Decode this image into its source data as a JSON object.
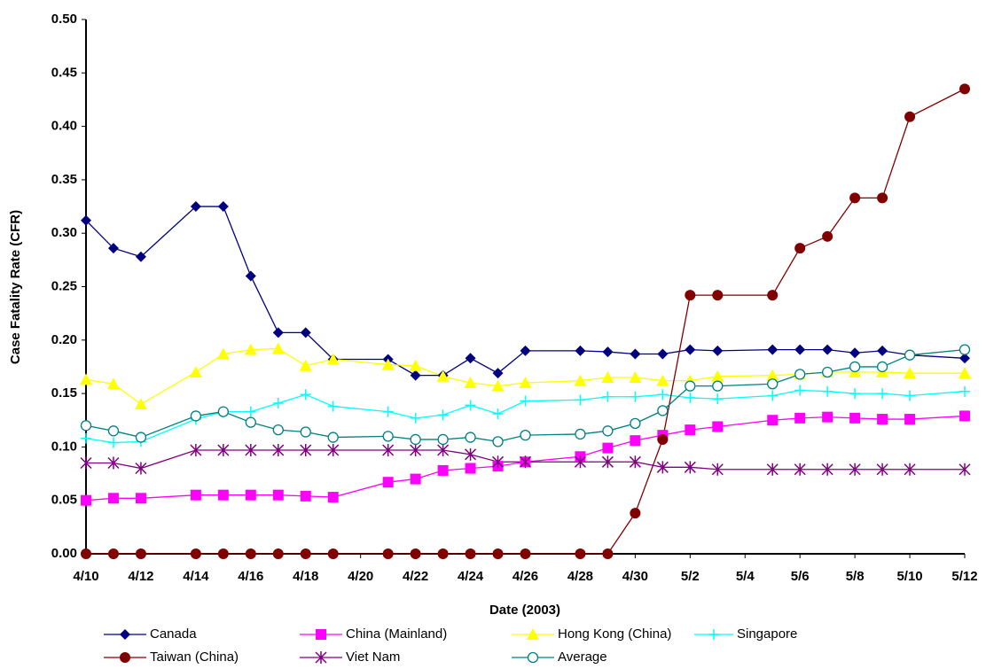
{
  "chart_data": {
    "type": "line",
    "x_label": "Date (2003)",
    "y_label": "Case Fatality Rate (CFR)",
    "x": [
      "4/10",
      "4/11",
      "4/12",
      "4/14",
      "4/15",
      "4/16",
      "4/17",
      "4/18",
      "4/19",
      "4/21",
      "4/22",
      "4/23",
      "4/24",
      "4/25",
      "4/26",
      "4/28",
      "4/29",
      "4/30",
      "5/1",
      "5/2",
      "5/3",
      "5/5",
      "5/6",
      "5/7",
      "5/8",
      "5/9",
      "5/10",
      "5/12"
    ],
    "xlim": [
      "4/10",
      "5/12"
    ],
    "xticks": [
      "4/10",
      "4/12",
      "4/14",
      "4/16",
      "4/18",
      "4/20",
      "4/22",
      "4/24",
      "4/26",
      "4/28",
      "4/30",
      "5/2",
      "5/4",
      "5/6",
      "5/8",
      "5/10",
      "5/12"
    ],
    "ylim": [
      0,
      0.5
    ],
    "yticks": [
      {
        "value": 0,
        "label": "0.00"
      },
      {
        "value": 0.05,
        "label": "0.05"
      },
      {
        "value": 0.1,
        "label": "0.10"
      },
      {
        "value": 0.15,
        "label": "0.15"
      },
      {
        "value": 0.2,
        "label": "0.20"
      },
      {
        "value": 0.25,
        "label": "0.25"
      },
      {
        "value": 0.3,
        "label": "0.30"
      },
      {
        "value": 0.35,
        "label": "0.35"
      },
      {
        "value": 0.4,
        "label": "0.40"
      },
      {
        "value": 0.45,
        "label": "0.45"
      },
      {
        "value": 0.5,
        "label": "0.50"
      }
    ],
    "grid": false,
    "legend": "bottom",
    "series": [
      {
        "name": "Canada",
        "color": "#000080",
        "marker": "diamond",
        "values": [
          0.312,
          0.286,
          0.278,
          0.325,
          0.325,
          0.26,
          0.207,
          0.207,
          0.182,
          0.182,
          0.167,
          0.167,
          0.183,
          0.169,
          0.19,
          0.19,
          0.189,
          0.187,
          0.187,
          0.191,
          0.19,
          0.191,
          0.191,
          0.191,
          0.188,
          0.19,
          0.186,
          0.183
        ]
      },
      {
        "name": "China (Mainland)",
        "color": "#ff00ff",
        "marker": "square",
        "values": [
          0.05,
          0.052,
          0.052,
          0.055,
          0.055,
          0.055,
          0.055,
          0.054,
          0.053,
          0.067,
          0.07,
          0.078,
          0.08,
          0.082,
          0.086,
          0.091,
          0.099,
          0.106,
          0.111,
          0.116,
          0.119,
          0.125,
          0.127,
          0.128,
          0.127,
          0.126,
          0.126,
          0.129
        ]
      },
      {
        "name": "Hong Kong (China)",
        "color": "#ffff00",
        "marker": "triangle",
        "values": [
          0.163,
          0.159,
          0.14,
          0.17,
          0.187,
          0.191,
          0.192,
          0.176,
          0.182,
          0.177,
          0.176,
          0.166,
          0.16,
          0.157,
          0.16,
          0.162,
          0.165,
          0.165,
          0.162,
          0.162,
          0.166,
          0.167,
          0.168,
          0.17,
          0.17,
          0.17,
          0.169,
          0.169
        ]
      },
      {
        "name": "Singapore",
        "color": "#00ffff",
        "marker": "plus",
        "values": [
          0.108,
          0.104,
          0.105,
          0.126,
          0.133,
          0.133,
          0.141,
          0.149,
          0.138,
          0.133,
          0.127,
          0.13,
          0.139,
          0.131,
          0.143,
          0.144,
          0.147,
          0.147,
          0.149,
          0.146,
          0.145,
          0.148,
          0.153,
          0.152,
          0.15,
          0.15,
          0.148,
          0.152
        ]
      },
      {
        "name": "Taiwan (China)",
        "color": "#800000",
        "marker": "circle",
        "values": [
          0,
          0,
          0,
          0,
          0,
          0,
          0,
          0,
          0,
          0,
          0,
          0,
          0,
          0,
          0,
          0,
          0,
          0.038,
          0.107,
          0.242,
          0.242,
          0.242,
          0.286,
          0.297,
          0.333,
          0.333,
          0.409,
          0.435
        ]
      },
      {
        "name": "Viet Nam",
        "color": "#800080",
        "marker": "star",
        "values": [
          0.085,
          0.085,
          0.08,
          0.097,
          0.097,
          0.097,
          0.097,
          0.097,
          0.097,
          0.097,
          0.097,
          0.097,
          0.093,
          0.086,
          0.086,
          0.086,
          0.086,
          0.086,
          0.081,
          0.081,
          0.079,
          0.079,
          0.079,
          0.079,
          0.079,
          0.079,
          0.079,
          0.079
        ]
      },
      {
        "name": "Average",
        "color": "#008080",
        "marker": "open-circle",
        "values": [
          0.12,
          0.115,
          0.109,
          0.129,
          0.133,
          0.123,
          0.116,
          0.114,
          0.109,
          0.11,
          0.107,
          0.107,
          0.109,
          0.105,
          0.111,
          0.112,
          0.115,
          0.122,
          0.134,
          0.157,
          0.157,
          0.159,
          0.168,
          0.17,
          0.175,
          0.175,
          0.186,
          0.191
        ]
      }
    ]
  }
}
